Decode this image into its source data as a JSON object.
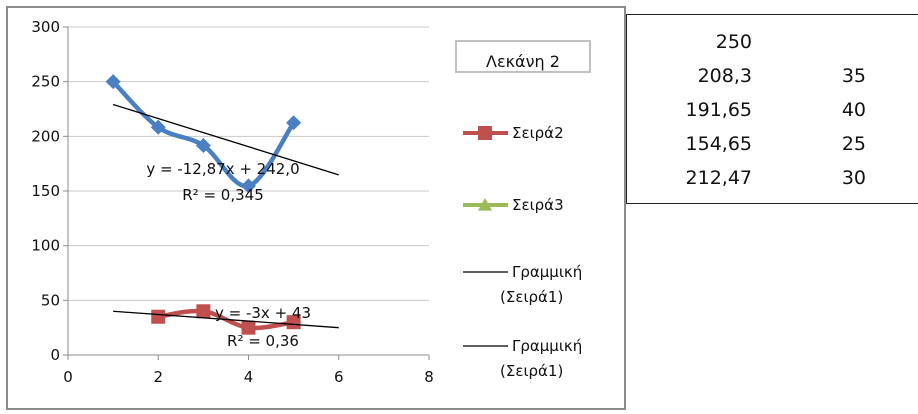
{
  "chart_data": {
    "type": "scatter",
    "title": "Λεκάνη 2",
    "xlim": [
      0,
      8
    ],
    "ylim": [
      0,
      300
    ],
    "x_ticks": [
      "0",
      "2",
      "4",
      "6",
      "8"
    ],
    "y_ticks": [
      "0",
      "50",
      "100",
      "150",
      "200",
      "250",
      "300"
    ],
    "grid": "horizontal",
    "legend_position": "right",
    "series": [
      {
        "x": [
          1,
          2,
          3,
          4,
          5
        ],
        "y": [
          250,
          208.3,
          191.65,
          154.65,
          212.47
        ],
        "color": "#4a7fc1",
        "marker": "diamond",
        "smooth": true
      },
      {
        "name": "Σειρά2",
        "x": [
          2,
          3,
          4,
          5
        ],
        "y": [
          35,
          40,
          25,
          30
        ],
        "color": "#c0504d",
        "marker": "square",
        "smooth": true
      },
      {
        "name": "Σειρά3",
        "x": [],
        "y": [],
        "color": "#9bbb59",
        "marker": "triangle"
      }
    ],
    "trendlines": [
      {
        "name": "Γραμμική (Σειρά1)",
        "slope": -12.87,
        "intercept": 242.0,
        "x_range": [
          1,
          6
        ],
        "equation": "y = -12,87x + 242,0",
        "r2": "R² = 0,345",
        "color": "#000000"
      },
      {
        "name": "Γραμμική (Σειρά1)",
        "slope": -3,
        "intercept": 43,
        "x_range": [
          1,
          6
        ],
        "equation": "y = -3x + 43",
        "r2": "R² = 0,36",
        "color": "#000000"
      }
    ],
    "legend": [
      {
        "label": "Σειρά2",
        "type": "series",
        "series": 1
      },
      {
        "label": "Σειρά3",
        "type": "series",
        "series": 2
      },
      {
        "label": "Γραμμική\n(Σειρά1)",
        "type": "trendline"
      },
      {
        "label": "Γραμμική\n(Σειρά1)",
        "type": "trendline"
      }
    ]
  },
  "table": {
    "rows": [
      [
        "250",
        ""
      ],
      [
        "208,3",
        "35"
      ],
      [
        "191,65",
        "40"
      ],
      [
        "154,65",
        "25"
      ],
      [
        "212,47",
        "30"
      ]
    ]
  }
}
